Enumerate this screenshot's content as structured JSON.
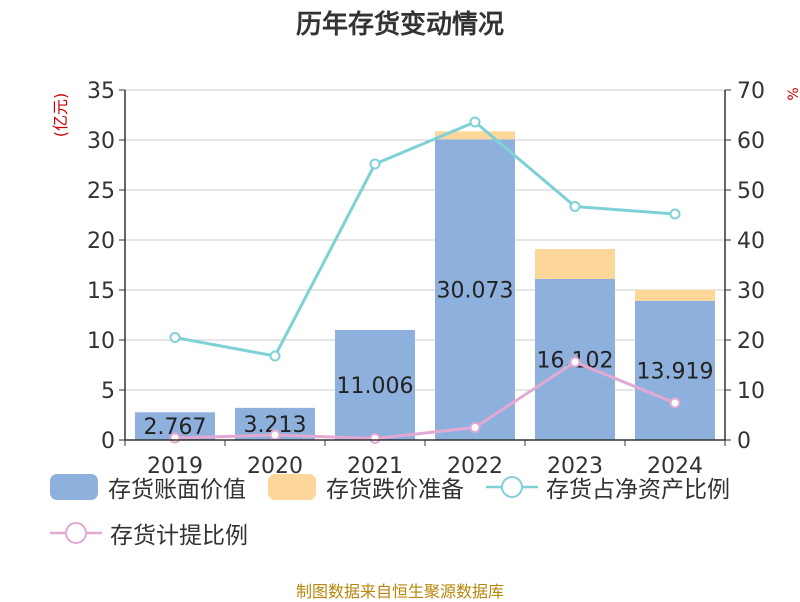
{
  "title": "历年存货变动情况",
  "footer": "制图数据来自恒生聚源数据库",
  "left_axis_label": "(亿元)",
  "right_axis_label": "%",
  "colors": {
    "bar_book": "#8eb0dc",
    "bar_reserve": "#fdd79a",
    "line_net_asset": "#7fd1d6",
    "line_provision": "#e2a9d3",
    "grid": "#cccccc",
    "axis": "#333333",
    "label_red": "#cc0000"
  },
  "chart_data": {
    "type": "bar",
    "title": "历年存货变动情况",
    "categories": [
      "2019",
      "2020",
      "2021",
      "2022",
      "2023",
      "2024"
    ],
    "ylim_left": [
      0,
      35
    ],
    "yticks_left": [
      0,
      5,
      10,
      15,
      20,
      25,
      30,
      35
    ],
    "ylim_right": [
      0,
      70
    ],
    "yticks_right": [
      0,
      10,
      20,
      30,
      40,
      50,
      60,
      70
    ],
    "grid": true,
    "legend_position": "bottom",
    "series": [
      {
        "name": "存货账面价值",
        "kind": "bar",
        "axis": "left",
        "values": [
          2.767,
          3.213,
          11.006,
          30.073,
          16.102,
          13.919
        ],
        "labels": [
          "2.767",
          "3.213",
          "11.006",
          "30.073",
          "16.102",
          "13.919"
        ]
      },
      {
        "name": "存货跌价准备",
        "kind": "bar-stacked",
        "axis": "left",
        "values": [
          0.0,
          0.0,
          0.0,
          0.8,
          3.0,
          1.1
        ]
      },
      {
        "name": "存货占净资产比例",
        "kind": "line",
        "axis": "right",
        "values": [
          20.5,
          16.8,
          55.2,
          63.6,
          46.7,
          45.2
        ]
      },
      {
        "name": "存货计提比例",
        "kind": "line",
        "axis": "right",
        "values": [
          0.4,
          1.0,
          0.3,
          2.5,
          15.6,
          7.4
        ]
      }
    ]
  }
}
